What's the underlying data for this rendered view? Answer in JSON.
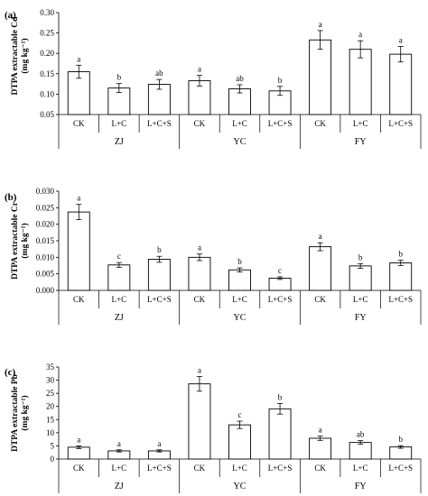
{
  "chart_data": [
    {
      "type": "bar",
      "panel_label": "(a)",
      "ylabel": "DTPA extractable Cd",
      "yunit": "(mg kg⁻¹)",
      "ylim": [
        0.05,
        0.3
      ],
      "yticks": [
        "0.05",
        "0.10",
        "0.15",
        "0.20",
        "0.25",
        "0.30"
      ],
      "yticks_values": [
        0.05,
        0.1,
        0.15,
        0.2,
        0.25,
        0.3
      ],
      "categories": [
        "CK",
        "L+C",
        "L+C+S",
        "CK",
        "L+C",
        "L+C+S",
        "CK",
        "L+C",
        "L+C+S"
      ],
      "groups": [
        "ZJ",
        "YC",
        "FY"
      ],
      "values": [
        0.155,
        0.115,
        0.124,
        0.133,
        0.113,
        0.108,
        0.233,
        0.21,
        0.198
      ],
      "errors": [
        0.016,
        0.011,
        0.012,
        0.013,
        0.01,
        0.011,
        0.023,
        0.021,
        0.019
      ],
      "letters": [
        "a",
        "b",
        "ab",
        "a",
        "ab",
        "b",
        "a",
        "a",
        "a"
      ]
    },
    {
      "type": "bar",
      "panel_label": "(b)",
      "ylabel": "DTPA extractable Cr",
      "yunit": "(mg kg⁻¹)",
      "ylim": [
        0,
        0.03
      ],
      "yticks": [
        "0.000",
        "0.005",
        "0.010",
        "0.015",
        "0.020",
        "0.025",
        "0.030"
      ],
      "yticks_values": [
        0,
        0.005,
        0.01,
        0.015,
        0.02,
        0.025,
        0.03
      ],
      "categories": [
        "CK",
        "L+C",
        "L+C+S",
        "CK",
        "L+C",
        "L+C+S",
        "CK",
        "L+C",
        "L+C+S"
      ],
      "groups": [
        "ZJ",
        "YC",
        "FY"
      ],
      "values": [
        0.0237,
        0.0077,
        0.0094,
        0.01,
        0.0062,
        0.0037,
        0.0132,
        0.0074,
        0.0083
      ],
      "errors": [
        0.0023,
        0.0007,
        0.0009,
        0.001,
        0.0006,
        0.0004,
        0.0012,
        0.0007,
        0.0008
      ],
      "letters": [
        "a",
        "c",
        "b",
        "a",
        "b",
        "c",
        "a",
        "b",
        "b"
      ]
    },
    {
      "type": "bar",
      "panel_label": "(c)",
      "ylabel": "DTPA extractable Pb",
      "yunit": "(mg kg⁻¹)",
      "ylim": [
        0,
        35
      ],
      "yticks": [
        "0",
        "5",
        "10",
        "15",
        "20",
        "25",
        "30",
        "35"
      ],
      "yticks_values": [
        0,
        5,
        10,
        15,
        20,
        25,
        30,
        35
      ],
      "categories": [
        "CK",
        "L+C",
        "L+C+S",
        "CK",
        "L+C",
        "L+C+S",
        "CK",
        "L+C",
        "L+C+S"
      ],
      "groups": [
        "ZJ",
        "YC",
        "FY"
      ],
      "values": [
        4.5,
        3.1,
        3.1,
        28.6,
        13.0,
        19.1,
        7.9,
        6.3,
        4.6
      ],
      "errors": [
        0.5,
        0.4,
        0.4,
        2.8,
        1.4,
        2.0,
        0.8,
        0.7,
        0.5
      ],
      "letters": [
        "a",
        "a",
        "a",
        "a",
        "c",
        "b",
        "a",
        "ab",
        "b"
      ]
    }
  ]
}
